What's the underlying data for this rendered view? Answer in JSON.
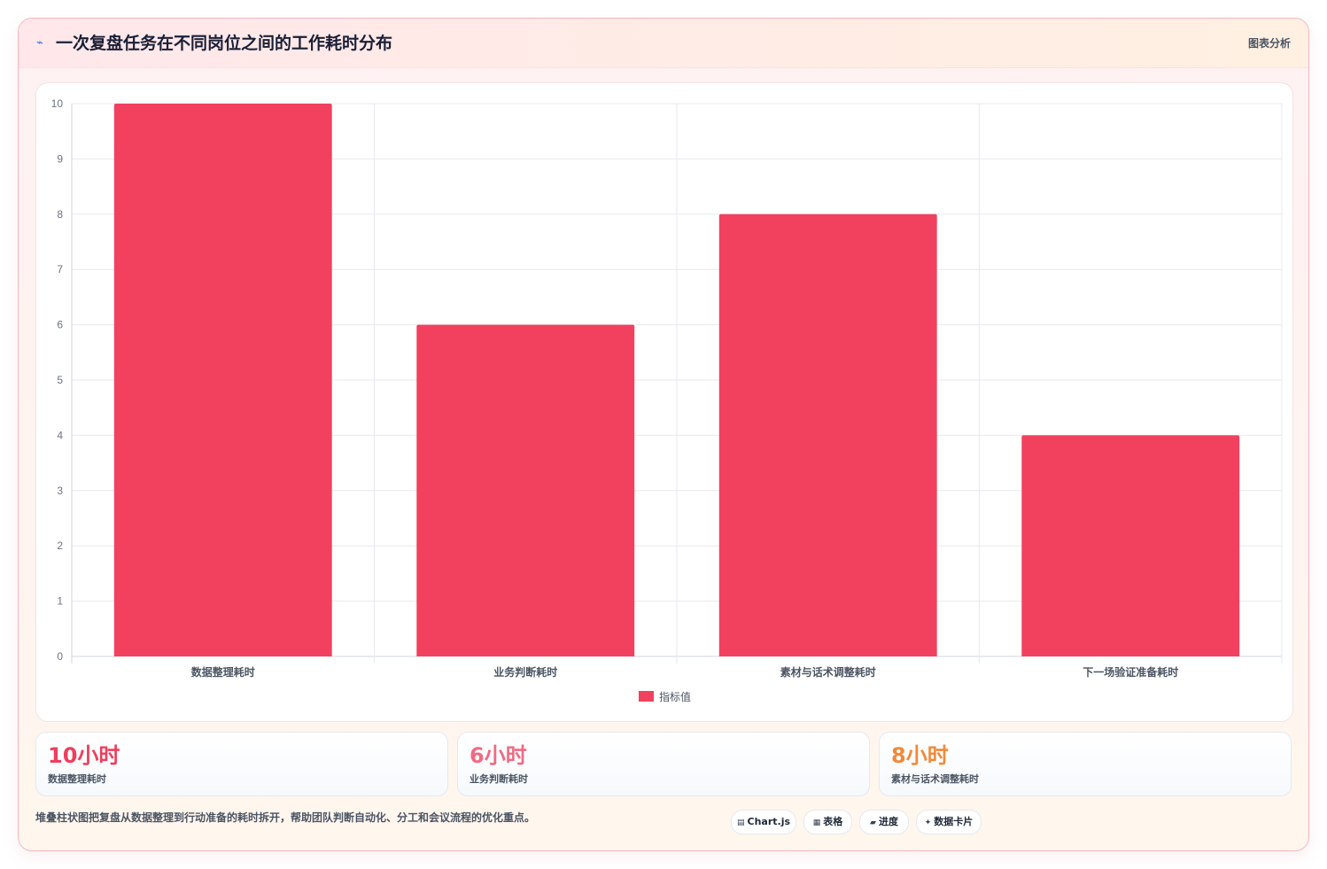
{
  "header": {
    "icon": "bolt-icon",
    "title": "一次复盘任务在不同岗位之间的工作耗时分布",
    "tag": "图表分析"
  },
  "chart_data": {
    "type": "bar",
    "categories": [
      "数据整理耗时",
      "业务判断耗时",
      "素材与话术调整耗时",
      "下一场验证准备耗时"
    ],
    "series": [
      {
        "name": "指标值",
        "values": [
          10,
          6,
          8,
          4
        ],
        "color": "#f2415e"
      }
    ],
    "ylim": [
      0,
      10
    ],
    "yticks": [
      0,
      1,
      2,
      3,
      4,
      5,
      6,
      7,
      8,
      9,
      10
    ],
    "grid": true,
    "legend": "bottom-center"
  },
  "stats": [
    {
      "value": "10小时",
      "label": "数据整理耗时",
      "color": "#ee3f5d"
    },
    {
      "value": "6小时",
      "label": "业务判断耗时",
      "color": "#f06a83"
    },
    {
      "value": "8小时",
      "label": "素材与话术调整耗时",
      "color": "#f08a3c"
    }
  ],
  "footnote": "堆叠柱状图把复盘从数据整理到行动准备的耗时拆开，帮助团队判断自动化、分工和会议流程的优化重点。",
  "chips": [
    {
      "icon": "▤",
      "label": "Chart.js"
    },
    {
      "icon": "▦",
      "label": "表格"
    },
    {
      "icon": "▰",
      "label": "进度"
    },
    {
      "icon": "✦",
      "label": "数据卡片"
    }
  ]
}
